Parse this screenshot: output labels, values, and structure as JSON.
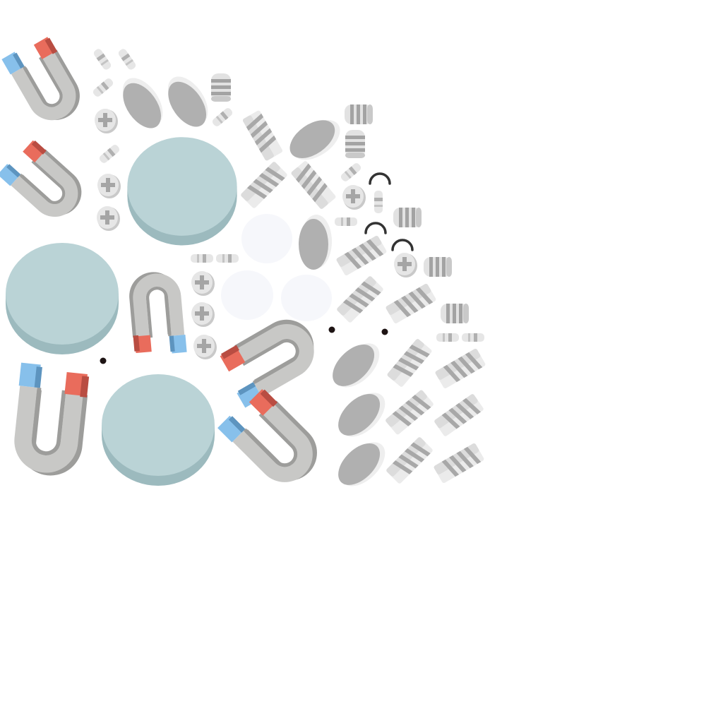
{
  "sheet": {
    "kind": "sprite-atlas",
    "theme": "magnets-and-metal-parts"
  },
  "colors": {
    "background": "#ffffff",
    "magnet_body_light": "#d3d3d1",
    "magnet_body_mid": "#c2c2c0",
    "magnet_body_dark": "#9d9d9b",
    "magnet_red": "#e96c5c",
    "magnet_red_dark": "#b94d42",
    "magnet_blue": "#87c0eb",
    "magnet_blue_dark": "#5d94bf",
    "disc_top": "#bad3d6",
    "disc_side": "#9cbabe",
    "bubble": "#f6f7fb",
    "metal_dark": "#ababab",
    "metal_light": "#e8e8e8",
    "arc": "#333333",
    "dot": "#1e1414"
  },
  "icons": {
    "magnet": "horseshoe-magnet-icon",
    "disc": "round-disc-icon",
    "screw": "screw-head-icon",
    "bolt": "threaded-bolt-icon",
    "nut": "cylinder-nut-icon",
    "oval": "oval-plate-icon",
    "arc": "arc-spring-icon",
    "bubble": "soft-bubble-icon",
    "dot": "dot-marker-icon"
  }
}
